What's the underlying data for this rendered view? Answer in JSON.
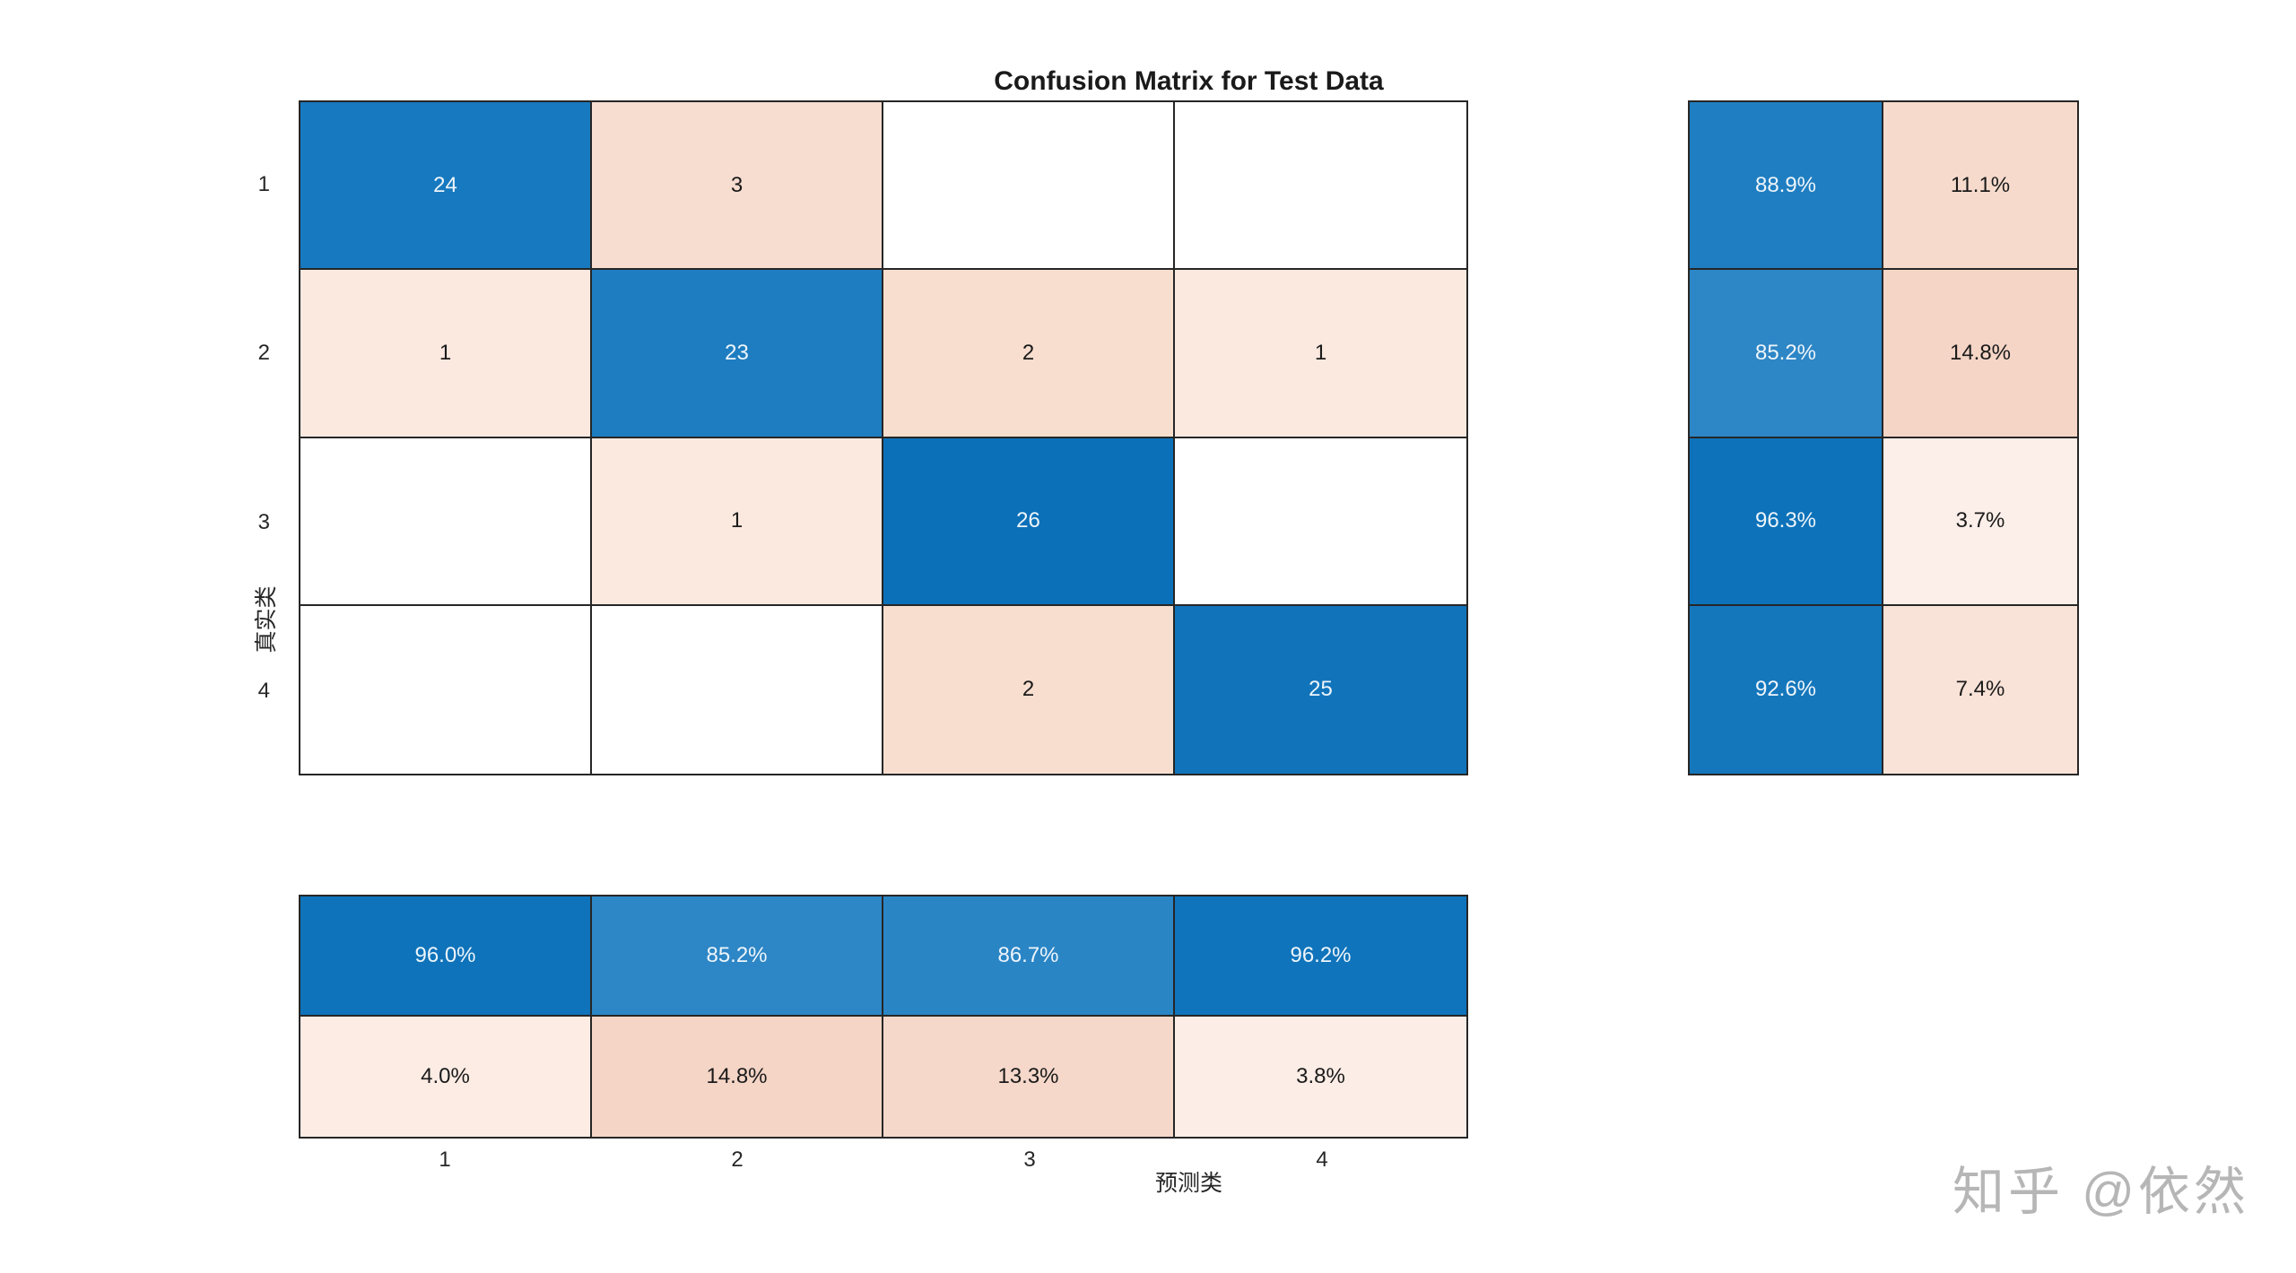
{
  "title": "Confusion Matrix for Test Data",
  "axes": {
    "xlabel": "预测类",
    "ylabel": "真实类",
    "x_ticks": [
      "1",
      "2",
      "3",
      "4"
    ],
    "y_ticks": [
      "1",
      "2",
      "3",
      "4"
    ]
  },
  "watermark": "知乎 @依然",
  "colors": {
    "diagonal_base": "#0072bd",
    "offdiagonal_base": "#f4c8b4",
    "grid_line": "#262626",
    "text_on_dark": "#eef5fb",
    "text_on_light": "#1a1a1a",
    "empty_cell": "#ffffff",
    "watermark": "#b3b3b3"
  },
  "chart_data": {
    "type": "heatmap",
    "subtype": "confusion-matrix",
    "title": "Confusion Matrix for Test Data",
    "xlabel": "预测类",
    "ylabel": "真实类",
    "classes": [
      "1",
      "2",
      "3",
      "4"
    ],
    "matrix_rows_true_by_predicted": [
      [
        24,
        3,
        0,
        0
      ],
      [
        1,
        23,
        2,
        1
      ],
      [
        0,
        1,
        26,
        0
      ],
      [
        0,
        0,
        2,
        25
      ]
    ],
    "row_summary_percent_correct_incorrect": [
      [
        88.9,
        11.1
      ],
      [
        85.2,
        14.8
      ],
      [
        96.3,
        3.7
      ],
      [
        92.6,
        7.4
      ]
    ],
    "column_summary_percent_correct_incorrect": [
      [
        96.0,
        4.0
      ],
      [
        85.2,
        14.8
      ],
      [
        86.7,
        13.3
      ],
      [
        96.2,
        3.8
      ]
    ],
    "legend_position": "none",
    "grid": true
  },
  "main_grid": {
    "cols": 4,
    "cells": [
      {
        "label": "24",
        "bg": "#1779bf",
        "fg": "#eef5fb"
      },
      {
        "label": "3",
        "bg": "#f7ddd0",
        "fg": "#1a1a1a"
      },
      {
        "label": "",
        "bg": "#ffffff",
        "fg": "#1a1a1a"
      },
      {
        "label": "",
        "bg": "#ffffff",
        "fg": "#1a1a1a"
      },
      {
        "label": "1",
        "bg": "#fbe9e0",
        "fg": "#1a1a1a"
      },
      {
        "label": "23",
        "bg": "#1e7dc1",
        "fg": "#eef5fb"
      },
      {
        "label": "2",
        "bg": "#f7decf",
        "fg": "#1a1a1a"
      },
      {
        "label": "1",
        "bg": "#fbe9e0",
        "fg": "#1a1a1a"
      },
      {
        "label": "",
        "bg": "#ffffff",
        "fg": "#1a1a1a"
      },
      {
        "label": "1",
        "bg": "#fbe9e0",
        "fg": "#1a1a1a"
      },
      {
        "label": "26",
        "bg": "#0c70b8",
        "fg": "#eef5fb"
      },
      {
        "label": "",
        "bg": "#ffffff",
        "fg": "#1a1a1a"
      },
      {
        "label": "",
        "bg": "#ffffff",
        "fg": "#1a1a1a"
      },
      {
        "label": "",
        "bg": "#ffffff",
        "fg": "#1a1a1a"
      },
      {
        "label": "2",
        "bg": "#f7decf",
        "fg": "#1a1a1a"
      },
      {
        "label": "25",
        "bg": "#1174bb",
        "fg": "#eef5fb"
      }
    ]
  },
  "row_summary": {
    "cols": 2,
    "cells": [
      {
        "label": "88.9%",
        "bg": "#1f7ec1",
        "fg": "#eef5fb"
      },
      {
        "label": "11.1%",
        "bg": "#f6dbcd",
        "fg": "#1a1a1a"
      },
      {
        "label": "85.2%",
        "bg": "#2d86c6",
        "fg": "#eef5fb"
      },
      {
        "label": "14.8%",
        "bg": "#f4d5c6",
        "fg": "#1a1a1a"
      },
      {
        "label": "96.3%",
        "bg": "#0d72b9",
        "fg": "#eef5fb"
      },
      {
        "label": "3.7%",
        "bg": "#fceee8",
        "fg": "#1a1a1a"
      },
      {
        "label": "92.6%",
        "bg": "#1477bc",
        "fg": "#eef5fb"
      },
      {
        "label": "7.4%",
        "bg": "#f9e2d7",
        "fg": "#1a1a1a"
      }
    ]
  },
  "col_summary": {
    "cols": 4,
    "cells": [
      {
        "label": "96.0%",
        "bg": "#0e73ba",
        "fg": "#eef5fb"
      },
      {
        "label": "85.2%",
        "bg": "#2d86c6",
        "fg": "#eef5fb"
      },
      {
        "label": "86.7%",
        "bg": "#2a85c5",
        "fg": "#eef5fb"
      },
      {
        "label": "96.2%",
        "bg": "#0f74bb",
        "fg": "#eef5fb"
      },
      {
        "label": "4.0%",
        "bg": "#fcece4",
        "fg": "#1a1a1a"
      },
      {
        "label": "14.8%",
        "bg": "#f4d5c6",
        "fg": "#1a1a1a"
      },
      {
        "label": "13.3%",
        "bg": "#f5d8ca",
        "fg": "#1a1a1a"
      },
      {
        "label": "3.8%",
        "bg": "#fcede6",
        "fg": "#1a1a1a"
      }
    ]
  }
}
